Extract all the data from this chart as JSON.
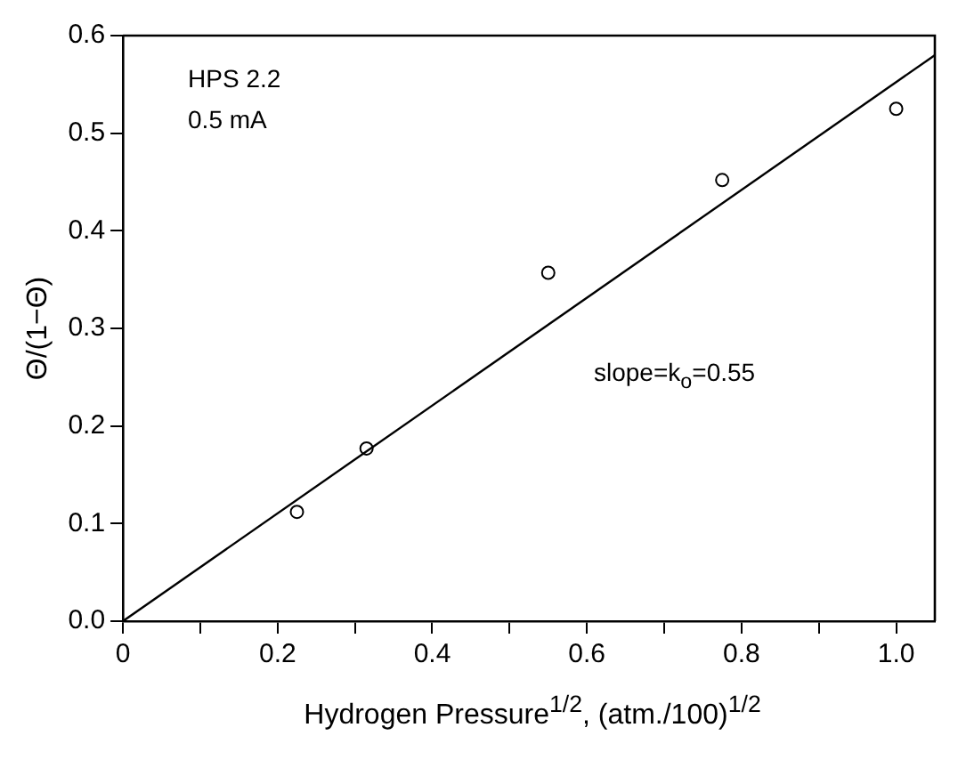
{
  "chart_data": {
    "type": "scatter",
    "xlabel": "Hydrogen Pressure$^{1/2}$, (atm./100)$^{1/2}$",
    "ylabel": "Θ/(1−Θ)",
    "annotations": [
      "HPS 2.2",
      "0.5 mA",
      "slope=k$_{o}$=0.55"
    ],
    "series": [
      {
        "type": "scatter",
        "x": [
          0.225,
          0.315,
          0.55,
          0.775,
          1.0
        ],
        "values": [
          0.112,
          0.177,
          0.357,
          0.452,
          0.525
        ],
        "color": "#000000",
        "marker": "circle"
      },
      {
        "type": "line",
        "x": [
          0,
          1.05
        ],
        "values": [
          0,
          0.58
        ],
        "color": "#000000",
        "marker": "none",
        "line_style": "solid"
      }
    ],
    "xlim": [
      0,
      1.05
    ],
    "ylim": [
      0,
      0.6
    ],
    "xticks": [
      0,
      {
        "value": 0.1,
        "label": null
      },
      0.2,
      {
        "value": 0.3,
        "label": null
      },
      0.4,
      {
        "value": 0.5,
        "label": null
      },
      0.6,
      {
        "value": 0.7,
        "label": null
      },
      0.8,
      {
        "value": 0.9,
        "label": null
      },
      {
        "value": 1,
        "label": "1.0"
      }
    ],
    "yticks": [
      {
        "value": 0,
        "label": "0.0"
      },
      0.1,
      0.2,
      0.3,
      0.4,
      0.5,
      0.6
    ],
    "grid": false,
    "legend": false
  }
}
